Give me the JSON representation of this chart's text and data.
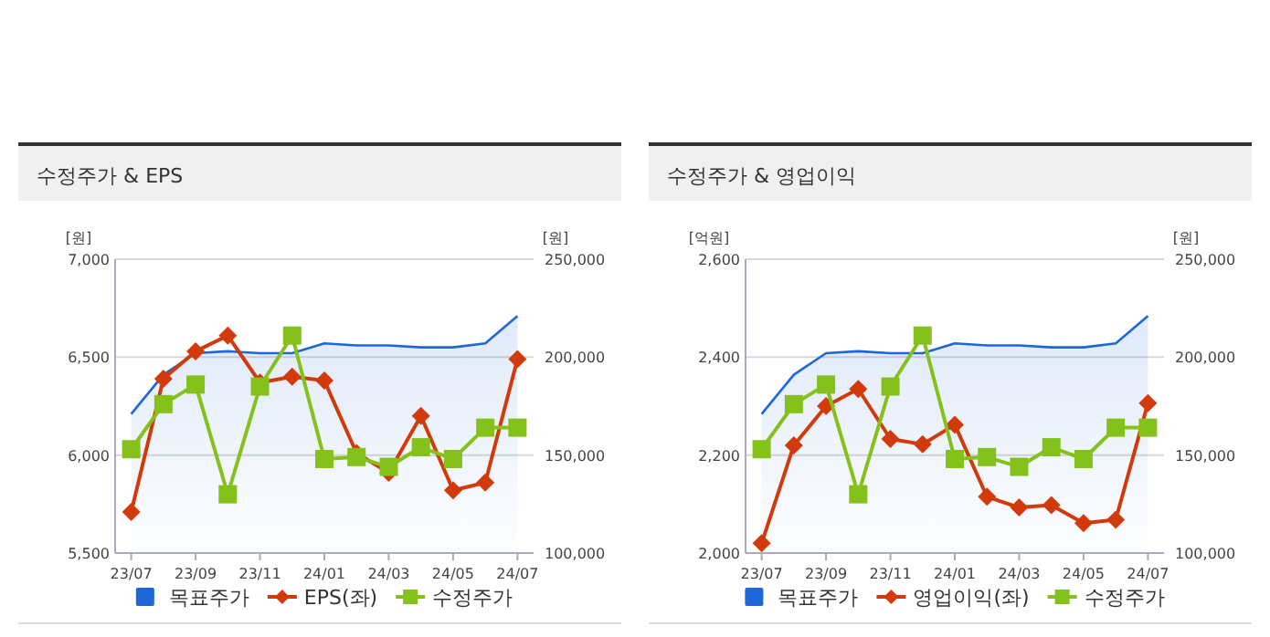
{
  "chart_data": [
    {
      "type": "line",
      "title": "수정주가 & EPS",
      "ylabel": "[원]",
      "y2label": "[원]",
      "categories": [
        "23/07",
        null,
        "23/09",
        null,
        "23/11",
        null,
        "24/01",
        null,
        "24/03",
        null,
        "24/05",
        null,
        "24/07"
      ],
      "ylim": [
        5500,
        7000
      ],
      "yticks": [
        {
          "value": 5500,
          "label": "5,500"
        },
        {
          "value": 6000,
          "label": "6,000"
        },
        {
          "value": 6500,
          "label": "6,500"
        },
        {
          "value": 7000,
          "label": "7,000"
        }
      ],
      "y2lim": [
        100000,
        250000
      ],
      "y2ticks": [
        {
          "value": 100000,
          "label": "100,000"
        },
        {
          "value": 150000,
          "label": "150,000"
        },
        {
          "value": 200000,
          "label": "200,000"
        },
        {
          "value": 250000,
          "label": "250,000"
        }
      ],
      "grid": "y",
      "legend": "bottom",
      "series": [
        {
          "name": "목표주가",
          "type": "area",
          "axis": "y2",
          "color": "#1f66d8",
          "marker": "none",
          "values": [
            171000,
            191000,
            202000,
            203000,
            202000,
            202000,
            207000,
            206000,
            206000,
            205000,
            205000,
            207000,
            221000
          ]
        },
        {
          "name": "EPS(좌)",
          "color": "#d23a0c",
          "marker": "diamond",
          "values": [
            5710,
            6390,
            6530,
            6610,
            6370,
            6400,
            6380,
            6010,
            5910,
            6200,
            5820,
            5860,
            6490
          ]
        },
        {
          "name": "수정주가",
          "axis": "y2",
          "color": "#84c11a",
          "marker": "square",
          "values": [
            153000,
            176000,
            186000,
            130000,
            185000,
            211000,
            148000,
            149000,
            144000,
            154000,
            148000,
            164000,
            164000
          ]
        }
      ]
    },
    {
      "type": "line",
      "title": "수정주가 & 영업이익",
      "ylabel": "[억원]",
      "y2label": "[원]",
      "categories": [
        "23/07",
        null,
        "23/09",
        null,
        "23/11",
        null,
        "24/01",
        null,
        "24/03",
        null,
        "24/05",
        null,
        "24/07"
      ],
      "ylim": [
        2000,
        2600
      ],
      "yticks": [
        {
          "value": 2000,
          "label": "2,000"
        },
        {
          "value": 2200,
          "label": "2,200"
        },
        {
          "value": 2400,
          "label": "2,400"
        },
        {
          "value": 2600,
          "label": "2,600"
        }
      ],
      "y2lim": [
        100000,
        250000
      ],
      "y2ticks": [
        {
          "value": 100000,
          "label": "100,000"
        },
        {
          "value": 150000,
          "label": "150,000"
        },
        {
          "value": 200000,
          "label": "200,000"
        },
        {
          "value": 250000,
          "label": "250,000"
        }
      ],
      "grid": "y",
      "legend": "bottom",
      "series": [
        {
          "name": "목표주가",
          "type": "area",
          "axis": "y2",
          "color": "#1f66d8",
          "marker": "none",
          "values": [
            171000,
            191000,
            202000,
            203000,
            202000,
            202000,
            207000,
            206000,
            206000,
            205000,
            205000,
            207000,
            221000
          ]
        },
        {
          "name": "영업이익(좌)",
          "color": "#d23a0c",
          "marker": "diamond",
          "values": [
            2020,
            2220,
            2300,
            2335,
            2233,
            2222,
            2262,
            2115,
            2093,
            2098,
            2061,
            2068,
            2306
          ]
        },
        {
          "name": "수정주가",
          "axis": "y2",
          "color": "#84c11a",
          "marker": "square",
          "values": [
            153000,
            176000,
            186000,
            130000,
            185000,
            211000,
            148000,
            149000,
            144000,
            154000,
            148000,
            164000,
            164000
          ]
        }
      ]
    }
  ]
}
